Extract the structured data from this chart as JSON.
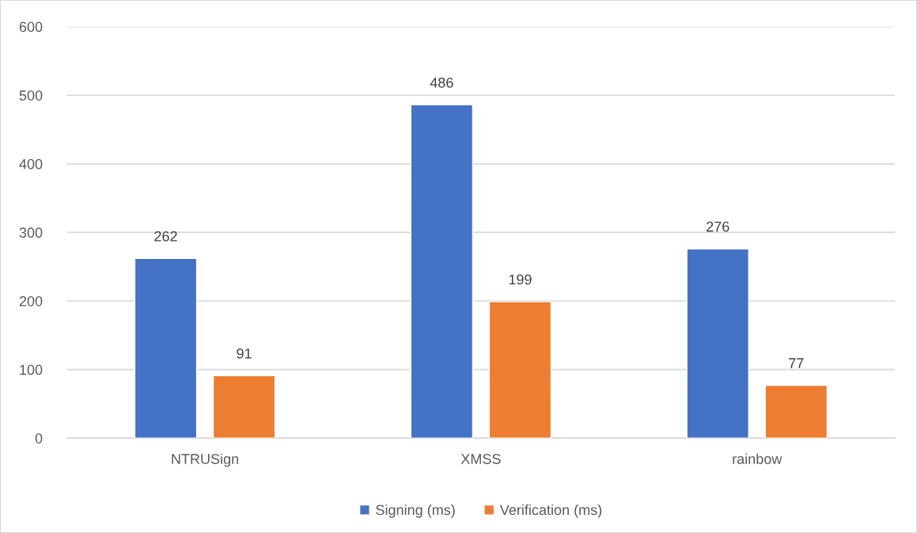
{
  "chart_data": {
    "type": "bar",
    "categories": [
      "NTRUSign",
      "XMSS",
      "rainbow"
    ],
    "series": [
      {
        "name": "Signing (ms)",
        "color": "#4472c4",
        "values": [
          262,
          486,
          276
        ]
      },
      {
        "name": "Verification (ms)",
        "color": "#ed7d31",
        "values": [
          91,
          199,
          77
        ]
      }
    ],
    "ylim": [
      0,
      600
    ],
    "yticks": [
      0,
      100,
      200,
      300,
      400,
      500,
      600
    ],
    "grid": "y",
    "legend": "bottom",
    "data_labels": true
  }
}
